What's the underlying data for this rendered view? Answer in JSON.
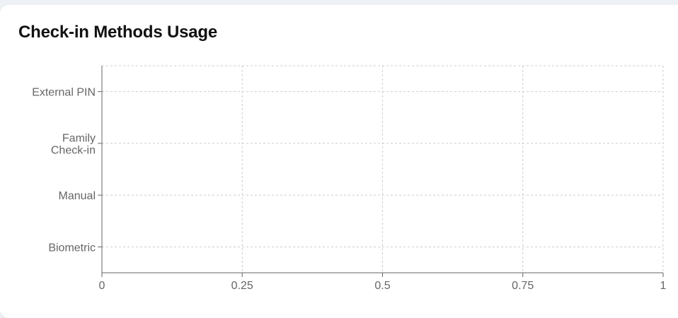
{
  "card": {
    "title": "Check-in Methods Usage"
  },
  "chart_data": {
    "type": "bar",
    "orientation": "horizontal",
    "title": "Check-in Methods Usage",
    "xlabel": "",
    "ylabel": "",
    "categories": [
      "External PIN",
      "Family Check-in",
      "Manual",
      "Biometric"
    ],
    "category_label_lines": [
      [
        "External PIN"
      ],
      [
        "Family",
        "Check-in"
      ],
      [
        "Manual"
      ],
      [
        "Biometric"
      ]
    ],
    "values": [
      0,
      0,
      0,
      0
    ],
    "xlim": [
      0,
      1
    ],
    "x_ticks": [
      0,
      0.25,
      0.5,
      0.75,
      1
    ],
    "x_tick_labels": [
      "0",
      "0.25",
      "0.5",
      "0.75",
      "1"
    ],
    "grid": true,
    "grid_style": "dashed",
    "legend": "none",
    "colors": {
      "axis": "#666666",
      "grid": "#cccccc",
      "tick_text": "#666666",
      "bar": "#4f81bd"
    }
  }
}
